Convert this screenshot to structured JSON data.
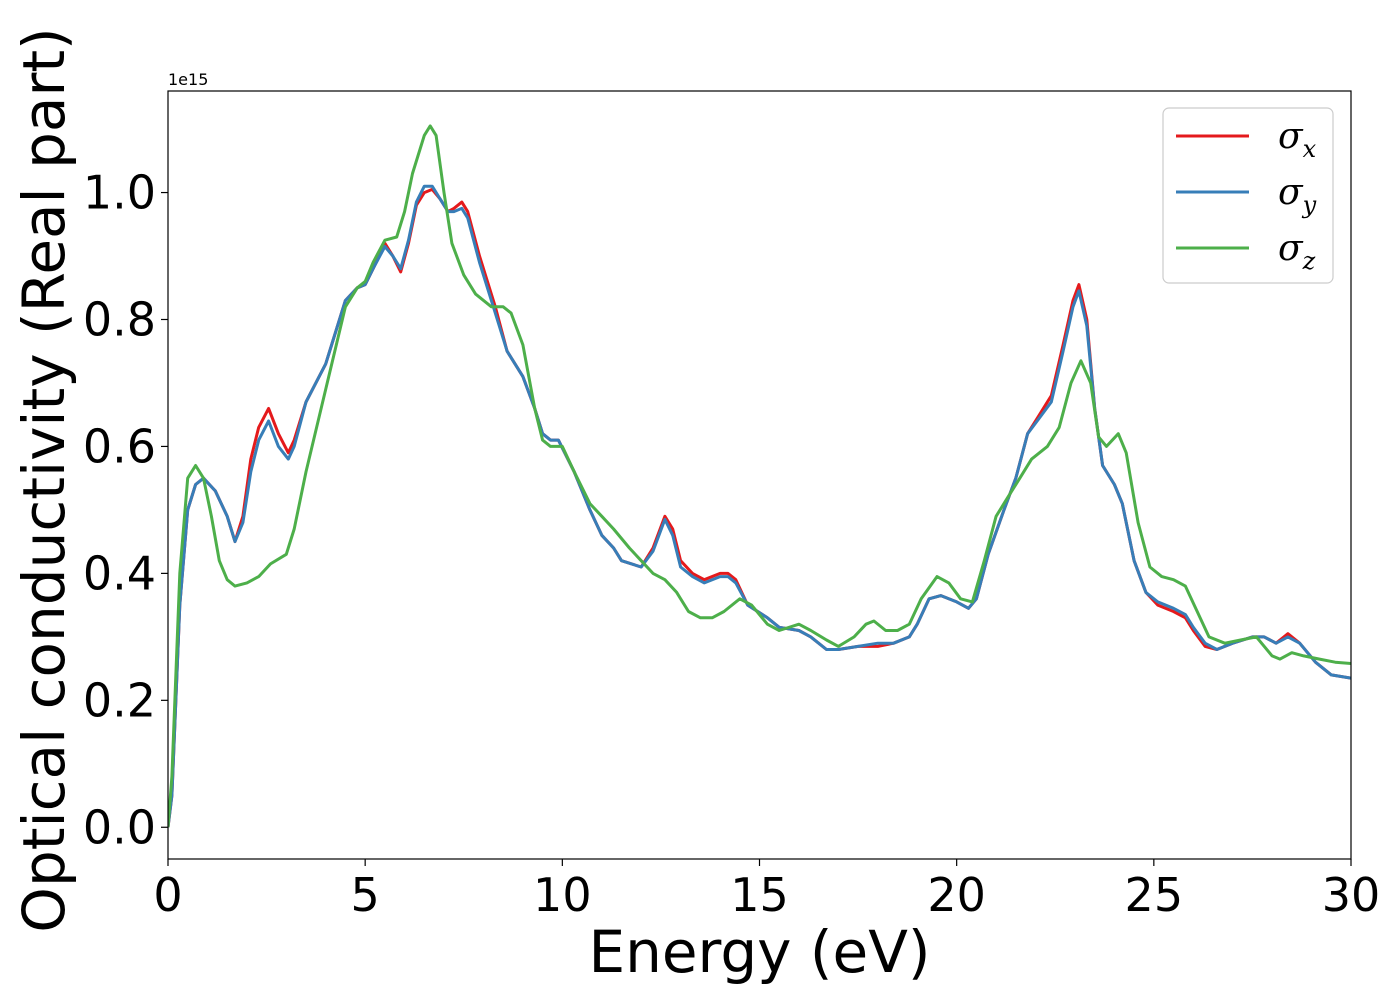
{
  "chart_data": {
    "type": "line",
    "title": "",
    "xlabel": "Energy (eV)",
    "ylabel": "Optical conductivity (Real part)",
    "y_offset_label": "1e15",
    "xlim": [
      0,
      30
    ],
    "ylim": [
      -0.05,
      1.16
    ],
    "x_ticks": [
      0,
      5,
      10,
      15,
      20,
      25,
      30
    ],
    "x_tick_labels": [
      "0",
      "5",
      "10",
      "15",
      "20",
      "25",
      "30"
    ],
    "y_ticks": [
      0.0,
      0.2,
      0.4,
      0.6,
      0.8,
      1.0
    ],
    "y_tick_labels": [
      "0.0",
      "0.2",
      "0.4",
      "0.6",
      "0.8",
      "1.0"
    ],
    "grid": false,
    "legend_position": "top-right",
    "series": [
      {
        "name": "σx",
        "legend_base": "σ",
        "legend_sub": "x",
        "color": "#e41a1c",
        "points": [
          [
            0,
            0
          ],
          [
            0.1,
            0.05
          ],
          [
            0.3,
            0.35
          ],
          [
            0.5,
            0.5
          ],
          [
            0.7,
            0.54
          ],
          [
            0.9,
            0.55
          ],
          [
            1.2,
            0.53
          ],
          [
            1.5,
            0.49
          ],
          [
            1.7,
            0.45
          ],
          [
            1.9,
            0.49
          ],
          [
            2.1,
            0.58
          ],
          [
            2.3,
            0.63
          ],
          [
            2.55,
            0.66
          ],
          [
            2.8,
            0.62
          ],
          [
            3.05,
            0.59
          ],
          [
            3.2,
            0.61
          ],
          [
            3.5,
            0.67
          ],
          [
            4.0,
            0.73
          ],
          [
            4.5,
            0.83
          ],
          [
            4.8,
            0.85
          ],
          [
            5.0,
            0.855
          ],
          [
            5.2,
            0.88
          ],
          [
            5.5,
            0.92
          ],
          [
            5.7,
            0.9
          ],
          [
            5.9,
            0.875
          ],
          [
            6.1,
            0.92
          ],
          [
            6.3,
            0.98
          ],
          [
            6.5,
            1.0
          ],
          [
            6.7,
            1.005
          ],
          [
            6.9,
            0.99
          ],
          [
            7.1,
            0.97
          ],
          [
            7.25,
            0.975
          ],
          [
            7.45,
            0.985
          ],
          [
            7.6,
            0.97
          ],
          [
            7.9,
            0.9
          ],
          [
            8.3,
            0.82
          ],
          [
            8.6,
            0.75
          ],
          [
            9.0,
            0.71
          ],
          [
            9.3,
            0.66
          ],
          [
            9.5,
            0.62
          ],
          [
            9.7,
            0.61
          ],
          [
            9.9,
            0.61
          ],
          [
            10.3,
            0.56
          ],
          [
            10.7,
            0.5
          ],
          [
            11.0,
            0.46
          ],
          [
            11.3,
            0.44
          ],
          [
            11.5,
            0.42
          ],
          [
            12.0,
            0.41
          ],
          [
            12.3,
            0.44
          ],
          [
            12.6,
            0.49
          ],
          [
            12.8,
            0.47
          ],
          [
            13.0,
            0.42
          ],
          [
            13.3,
            0.4
          ],
          [
            13.6,
            0.39
          ],
          [
            14.0,
            0.4
          ],
          [
            14.2,
            0.4
          ],
          [
            14.4,
            0.39
          ],
          [
            14.7,
            0.35
          ],
          [
            15.2,
            0.33
          ],
          [
            15.5,
            0.315
          ],
          [
            16.0,
            0.31
          ],
          [
            16.3,
            0.3
          ],
          [
            16.7,
            0.28
          ],
          [
            17.0,
            0.28
          ],
          [
            17.5,
            0.285
          ],
          [
            18.0,
            0.285
          ],
          [
            18.4,
            0.29
          ],
          [
            18.8,
            0.3
          ],
          [
            19.0,
            0.32
          ],
          [
            19.3,
            0.36
          ],
          [
            19.6,
            0.365
          ],
          [
            20.0,
            0.355
          ],
          [
            20.3,
            0.345
          ],
          [
            20.5,
            0.36
          ],
          [
            20.8,
            0.43
          ],
          [
            21.2,
            0.5
          ],
          [
            21.5,
            0.55
          ],
          [
            21.8,
            0.62
          ],
          [
            22.1,
            0.65
          ],
          [
            22.4,
            0.68
          ],
          [
            22.7,
            0.76
          ],
          [
            22.95,
            0.83
          ],
          [
            23.1,
            0.855
          ],
          [
            23.3,
            0.8
          ],
          [
            23.5,
            0.66
          ],
          [
            23.7,
            0.57
          ],
          [
            24.0,
            0.54
          ],
          [
            24.2,
            0.51
          ],
          [
            24.5,
            0.42
          ],
          [
            24.8,
            0.37
          ],
          [
            25.1,
            0.35
          ],
          [
            25.5,
            0.34
          ],
          [
            25.8,
            0.33
          ],
          [
            26.0,
            0.31
          ],
          [
            26.3,
            0.285
          ],
          [
            26.6,
            0.28
          ],
          [
            27.0,
            0.29
          ],
          [
            27.5,
            0.3
          ],
          [
            27.8,
            0.3
          ],
          [
            28.1,
            0.29
          ],
          [
            28.4,
            0.305
          ],
          [
            28.7,
            0.29
          ],
          [
            29.1,
            0.26
          ],
          [
            29.5,
            0.24
          ],
          [
            30.0,
            0.235
          ]
        ]
      },
      {
        "name": "σy",
        "legend_base": "σ",
        "legend_sub": "y",
        "color": "#377eb8",
        "points": [
          [
            0,
            0
          ],
          [
            0.1,
            0.05
          ],
          [
            0.3,
            0.35
          ],
          [
            0.5,
            0.5
          ],
          [
            0.7,
            0.54
          ],
          [
            0.9,
            0.55
          ],
          [
            1.2,
            0.53
          ],
          [
            1.5,
            0.49
          ],
          [
            1.7,
            0.45
          ],
          [
            1.9,
            0.48
          ],
          [
            2.1,
            0.56
          ],
          [
            2.3,
            0.61
          ],
          [
            2.55,
            0.64
          ],
          [
            2.8,
            0.6
          ],
          [
            3.05,
            0.58
          ],
          [
            3.2,
            0.6
          ],
          [
            3.5,
            0.67
          ],
          [
            4.0,
            0.73
          ],
          [
            4.5,
            0.83
          ],
          [
            4.8,
            0.85
          ],
          [
            5.0,
            0.855
          ],
          [
            5.2,
            0.88
          ],
          [
            5.5,
            0.915
          ],
          [
            5.7,
            0.9
          ],
          [
            5.9,
            0.88
          ],
          [
            6.1,
            0.925
          ],
          [
            6.3,
            0.985
          ],
          [
            6.5,
            1.01
          ],
          [
            6.7,
            1.01
          ],
          [
            6.9,
            0.99
          ],
          [
            7.1,
            0.97
          ],
          [
            7.25,
            0.97
          ],
          [
            7.45,
            0.975
          ],
          [
            7.6,
            0.96
          ],
          [
            7.9,
            0.89
          ],
          [
            8.3,
            0.81
          ],
          [
            8.6,
            0.75
          ],
          [
            9.0,
            0.71
          ],
          [
            9.3,
            0.66
          ],
          [
            9.5,
            0.62
          ],
          [
            9.7,
            0.61
          ],
          [
            9.9,
            0.61
          ],
          [
            10.3,
            0.56
          ],
          [
            10.7,
            0.5
          ],
          [
            11.0,
            0.46
          ],
          [
            11.3,
            0.44
          ],
          [
            11.5,
            0.42
          ],
          [
            12.0,
            0.41
          ],
          [
            12.3,
            0.435
          ],
          [
            12.6,
            0.485
          ],
          [
            12.8,
            0.46
          ],
          [
            13.0,
            0.41
          ],
          [
            13.3,
            0.395
          ],
          [
            13.6,
            0.385
          ],
          [
            14.0,
            0.395
          ],
          [
            14.2,
            0.395
          ],
          [
            14.4,
            0.385
          ],
          [
            14.7,
            0.35
          ],
          [
            15.2,
            0.33
          ],
          [
            15.5,
            0.315
          ],
          [
            16.0,
            0.31
          ],
          [
            16.3,
            0.3
          ],
          [
            16.7,
            0.28
          ],
          [
            17.0,
            0.28
          ],
          [
            17.5,
            0.285
          ],
          [
            18.0,
            0.29
          ],
          [
            18.4,
            0.29
          ],
          [
            18.8,
            0.3
          ],
          [
            19.0,
            0.32
          ],
          [
            19.3,
            0.36
          ],
          [
            19.6,
            0.365
          ],
          [
            20.0,
            0.355
          ],
          [
            20.3,
            0.345
          ],
          [
            20.5,
            0.36
          ],
          [
            20.8,
            0.43
          ],
          [
            21.2,
            0.5
          ],
          [
            21.5,
            0.55
          ],
          [
            21.8,
            0.62
          ],
          [
            22.1,
            0.645
          ],
          [
            22.4,
            0.67
          ],
          [
            22.7,
            0.75
          ],
          [
            22.95,
            0.82
          ],
          [
            23.1,
            0.845
          ],
          [
            23.3,
            0.79
          ],
          [
            23.5,
            0.66
          ],
          [
            23.7,
            0.57
          ],
          [
            24.0,
            0.54
          ],
          [
            24.2,
            0.51
          ],
          [
            24.5,
            0.42
          ],
          [
            24.8,
            0.37
          ],
          [
            25.1,
            0.355
          ],
          [
            25.5,
            0.345
          ],
          [
            25.8,
            0.335
          ],
          [
            26.0,
            0.315
          ],
          [
            26.3,
            0.29
          ],
          [
            26.6,
            0.28
          ],
          [
            27.0,
            0.29
          ],
          [
            27.5,
            0.3
          ],
          [
            27.8,
            0.3
          ],
          [
            28.1,
            0.29
          ],
          [
            28.4,
            0.3
          ],
          [
            28.7,
            0.29
          ],
          [
            29.1,
            0.26
          ],
          [
            29.5,
            0.24
          ],
          [
            30.0,
            0.235
          ]
        ]
      },
      {
        "name": "σz",
        "legend_base": "σ",
        "legend_sub": "z",
        "color": "#4daf4a",
        "points": [
          [
            0,
            0
          ],
          [
            0.1,
            0.08
          ],
          [
            0.3,
            0.4
          ],
          [
            0.5,
            0.55
          ],
          [
            0.7,
            0.57
          ],
          [
            0.9,
            0.55
          ],
          [
            1.1,
            0.49
          ],
          [
            1.3,
            0.42
          ],
          [
            1.5,
            0.39
          ],
          [
            1.7,
            0.38
          ],
          [
            2.0,
            0.385
          ],
          [
            2.3,
            0.395
          ],
          [
            2.6,
            0.415
          ],
          [
            3.0,
            0.43
          ],
          [
            3.2,
            0.47
          ],
          [
            3.5,
            0.56
          ],
          [
            4.0,
            0.69
          ],
          [
            4.5,
            0.82
          ],
          [
            4.8,
            0.85
          ],
          [
            5.0,
            0.86
          ],
          [
            5.2,
            0.89
          ],
          [
            5.5,
            0.925
          ],
          [
            5.8,
            0.93
          ],
          [
            6.0,
            0.97
          ],
          [
            6.2,
            1.03
          ],
          [
            6.5,
            1.09
          ],
          [
            6.65,
            1.105
          ],
          [
            6.8,
            1.09
          ],
          [
            7.0,
            1.0
          ],
          [
            7.2,
            0.92
          ],
          [
            7.5,
            0.87
          ],
          [
            7.8,
            0.84
          ],
          [
            8.2,
            0.82
          ],
          [
            8.5,
            0.82
          ],
          [
            8.7,
            0.81
          ],
          [
            9.0,
            0.76
          ],
          [
            9.3,
            0.66
          ],
          [
            9.5,
            0.61
          ],
          [
            9.7,
            0.6
          ],
          [
            10.0,
            0.6
          ],
          [
            10.3,
            0.56
          ],
          [
            10.7,
            0.51
          ],
          [
            11.0,
            0.49
          ],
          [
            11.3,
            0.47
          ],
          [
            11.7,
            0.44
          ],
          [
            12.0,
            0.42
          ],
          [
            12.3,
            0.4
          ],
          [
            12.6,
            0.39
          ],
          [
            12.9,
            0.37
          ],
          [
            13.2,
            0.34
          ],
          [
            13.5,
            0.33
          ],
          [
            13.8,
            0.33
          ],
          [
            14.1,
            0.34
          ],
          [
            14.5,
            0.36
          ],
          [
            14.8,
            0.35
          ],
          [
            15.2,
            0.32
          ],
          [
            15.5,
            0.31
          ],
          [
            16.0,
            0.32
          ],
          [
            16.3,
            0.31
          ],
          [
            16.7,
            0.295
          ],
          [
            17.0,
            0.285
          ],
          [
            17.4,
            0.3
          ],
          [
            17.7,
            0.32
          ],
          [
            17.9,
            0.325
          ],
          [
            18.2,
            0.31
          ],
          [
            18.5,
            0.31
          ],
          [
            18.8,
            0.32
          ],
          [
            19.1,
            0.36
          ],
          [
            19.5,
            0.395
          ],
          [
            19.8,
            0.385
          ],
          [
            20.1,
            0.36
          ],
          [
            20.4,
            0.355
          ],
          [
            20.7,
            0.42
          ],
          [
            21.0,
            0.49
          ],
          [
            21.3,
            0.52
          ],
          [
            21.6,
            0.55
          ],
          [
            21.9,
            0.58
          ],
          [
            22.3,
            0.6
          ],
          [
            22.6,
            0.63
          ],
          [
            22.9,
            0.7
          ],
          [
            23.15,
            0.735
          ],
          [
            23.4,
            0.7
          ],
          [
            23.6,
            0.615
          ],
          [
            23.8,
            0.6
          ],
          [
            24.1,
            0.62
          ],
          [
            24.3,
            0.59
          ],
          [
            24.6,
            0.48
          ],
          [
            24.9,
            0.41
          ],
          [
            25.2,
            0.395
          ],
          [
            25.5,
            0.39
          ],
          [
            25.8,
            0.38
          ],
          [
            26.1,
            0.34
          ],
          [
            26.4,
            0.3
          ],
          [
            26.8,
            0.29
          ],
          [
            27.2,
            0.295
          ],
          [
            27.6,
            0.3
          ],
          [
            28.0,
            0.27
          ],
          [
            28.2,
            0.265
          ],
          [
            28.5,
            0.275
          ],
          [
            28.8,
            0.27
          ],
          [
            29.2,
            0.265
          ],
          [
            29.6,
            0.26
          ],
          [
            30.0,
            0.258
          ]
        ]
      }
    ]
  }
}
